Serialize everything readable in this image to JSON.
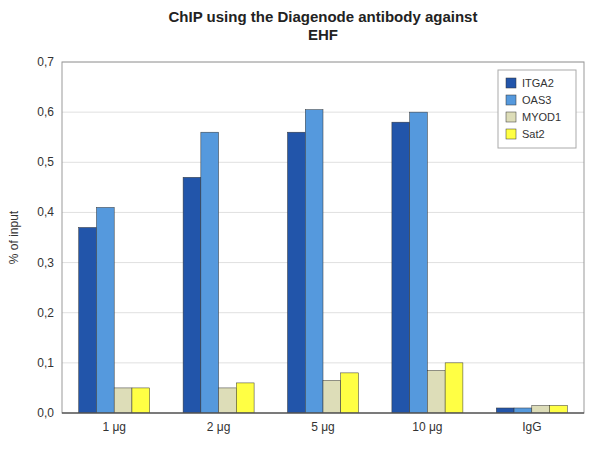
{
  "chart_data": {
    "type": "bar",
    "title": "ChIP using the Diagenode antibody against\nEHF",
    "ylabel": "% of input",
    "categories": [
      "1 μg",
      "2 μg",
      "5 μg",
      "10 μg",
      "IgG"
    ],
    "series": [
      {
        "name": "ITGA2",
        "color": "#2255AA",
        "values": [
          0.37,
          0.47,
          0.56,
          0.58,
          0.01
        ]
      },
      {
        "name": "OAS3",
        "color": "#5599DD",
        "values": [
          0.41,
          0.56,
          0.605,
          0.6,
          0.01
        ]
      },
      {
        "name": "MYOD1",
        "color": "#DDDDB8",
        "values": [
          0.05,
          0.05,
          0.065,
          0.085,
          0.015
        ]
      },
      {
        "name": "Sat2",
        "color": "#FFFF44",
        "values": [
          0.05,
          0.06,
          0.08,
          0.1,
          0.015
        ]
      }
    ],
    "ylim": [
      0,
      0.7
    ],
    "yticks": [
      {
        "value": 0.0,
        "label": "0,0"
      },
      {
        "value": 0.1,
        "label": "0,1"
      },
      {
        "value": 0.2,
        "label": "0,2"
      },
      {
        "value": 0.3,
        "label": "0,3"
      },
      {
        "value": 0.4,
        "label": "0,4"
      },
      {
        "value": 0.5,
        "label": "0,5"
      },
      {
        "value": 0.6,
        "label": "0,6"
      },
      {
        "value": 0.7,
        "label": "0,7"
      }
    ],
    "grid": true,
    "legend": "upper right"
  }
}
